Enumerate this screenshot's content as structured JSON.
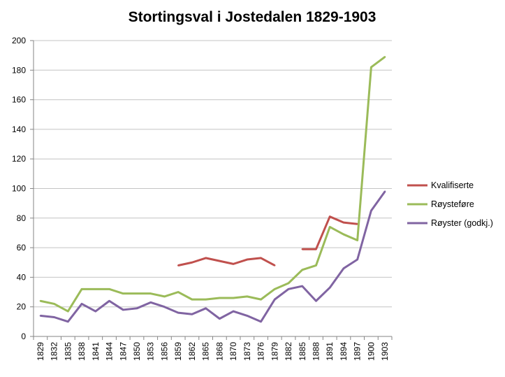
{
  "chart_data": {
    "type": "line",
    "title": "Stortingsval  i Jostedalen  1829-1903",
    "xlabel": "",
    "ylabel": "",
    "ylim": [
      0,
      200
    ],
    "yticks": [
      0,
      20,
      40,
      60,
      80,
      100,
      120,
      140,
      160,
      180,
      200
    ],
    "grid": "horizontal",
    "legend_position": "right",
    "categories": [
      "1829",
      "1832",
      "1835",
      "1838",
      "1841",
      "1844",
      "1847",
      "1850",
      "1853",
      "1856",
      "1859",
      "1862",
      "1865",
      "1868",
      "1870",
      "1873",
      "1876",
      "1879",
      "1882",
      "1885",
      "1888",
      "1891",
      "1894",
      "1897",
      "1900",
      "1903"
    ],
    "series": [
      {
        "name": "Kvalifiserte",
        "color": "#c0504d",
        "values": [
          null,
          null,
          null,
          null,
          null,
          null,
          null,
          null,
          null,
          null,
          48,
          50,
          53,
          51,
          49,
          52,
          53,
          48,
          null,
          59,
          59,
          81,
          77,
          76,
          null,
          null
        ]
      },
      {
        "name": "Røysteføre",
        "color": "#9bbb59",
        "values": [
          24,
          22,
          17,
          32,
          32,
          32,
          29,
          29,
          29,
          27,
          30,
          25,
          25,
          26,
          26,
          27,
          25,
          32,
          36,
          45,
          48,
          74,
          69,
          65,
          182,
          189
        ]
      },
      {
        "name": "Røyster (godkj.)",
        "color": "#8064a2",
        "values": [
          14,
          13,
          10,
          22,
          17,
          24,
          18,
          19,
          23,
          20,
          16,
          15,
          19,
          12,
          17,
          14,
          10,
          25,
          32,
          34,
          24,
          33,
          46,
          52,
          85,
          98
        ]
      }
    ]
  }
}
